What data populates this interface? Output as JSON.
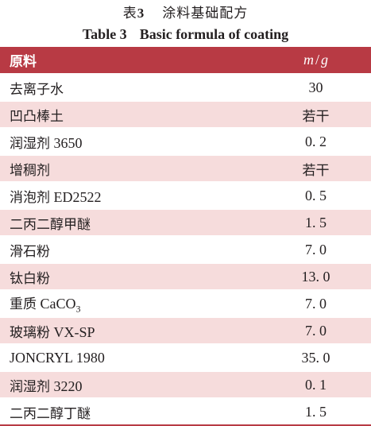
{
  "caption": {
    "cn_label": "表",
    "cn_number": "3",
    "cn_title": "涂料基础配方",
    "en_label": "Table 3",
    "en_title": "Basic formula of coating"
  },
  "colors": {
    "header_bg": "#b83a44",
    "shaded_row_bg": "#f6dcdc"
  },
  "table": {
    "header": {
      "name": "原料",
      "value": "m/g"
    },
    "rows": [
      {
        "name": "去离子水",
        "value": "30"
      },
      {
        "name": "凹凸棒土",
        "value": "若干"
      },
      {
        "name": "润湿剂 3650",
        "value": "0. 2"
      },
      {
        "name": "增稠剂",
        "value": "若干"
      },
      {
        "name": "消泡剂 ED2522",
        "value": "0. 5"
      },
      {
        "name": "二丙二醇甲醚",
        "value": "1. 5"
      },
      {
        "name": "滑石粉",
        "value": "7. 0"
      },
      {
        "name": "钛白粉",
        "value": "13. 0"
      },
      {
        "name": "重质 CaCO3",
        "value": "7. 0"
      },
      {
        "name": "玻璃粉 VX-SP",
        "value": "7. 0"
      },
      {
        "name": "JONCRYL 1980",
        "value": "35. 0"
      },
      {
        "name": "润湿剂 3220",
        "value": "0. 1"
      },
      {
        "name": "二丙二醇丁醚",
        "value": "1. 5"
      }
    ]
  }
}
